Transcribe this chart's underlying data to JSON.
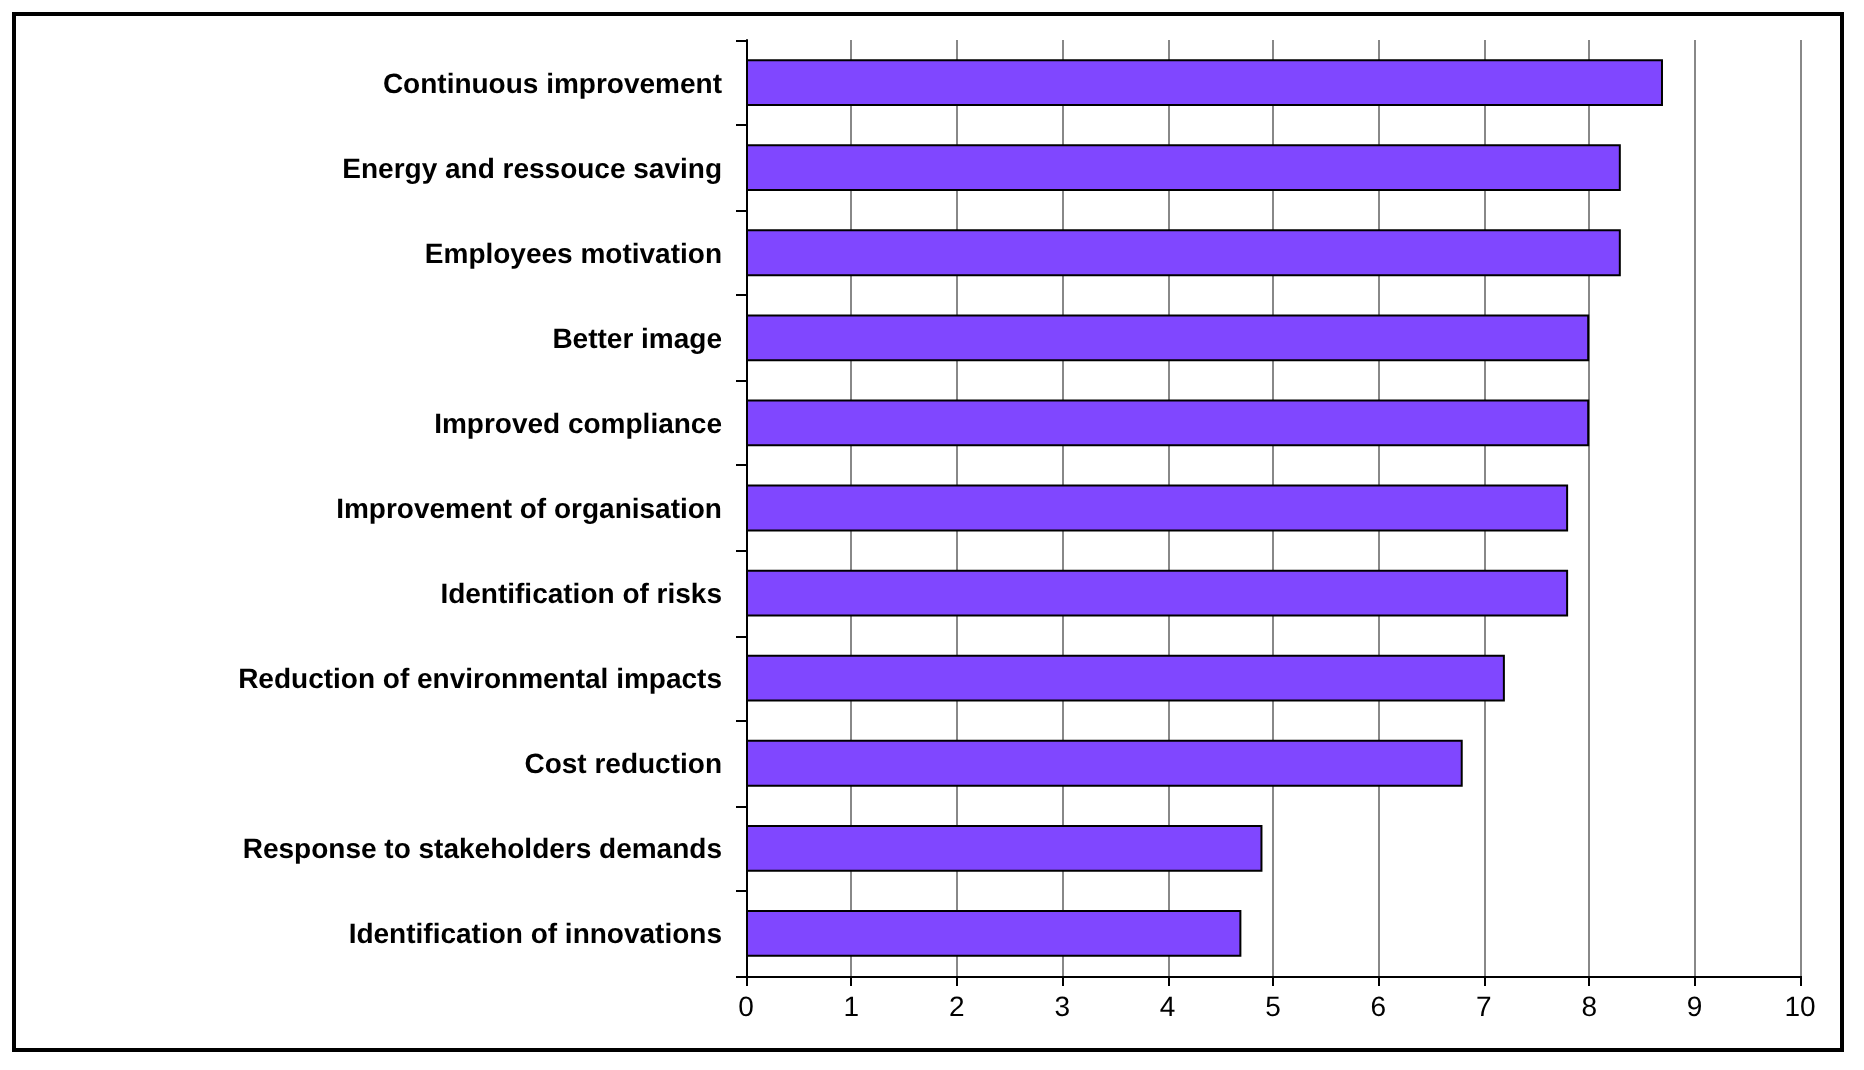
{
  "chart_data": {
    "type": "bar",
    "orientation": "horizontal",
    "categories": [
      "Continuous improvement",
      "Energy and ressouce saving",
      "Employees motivation",
      "Better image",
      "Improved compliance",
      "Improvement of organisation",
      "Identification of risks",
      "Reduction of environmental impacts",
      "Cost reduction",
      "Response to stakeholders demands",
      "Identification of innovations"
    ],
    "values": [
      8.7,
      8.3,
      8.3,
      8.0,
      8.0,
      7.8,
      7.8,
      7.2,
      6.8,
      4.9,
      4.7
    ],
    "color": "#8047ff",
    "xlim": [
      0,
      10
    ],
    "xticks": [
      0,
      1,
      2,
      3,
      4,
      5,
      6,
      7,
      8,
      9,
      10
    ],
    "grid": "x"
  }
}
